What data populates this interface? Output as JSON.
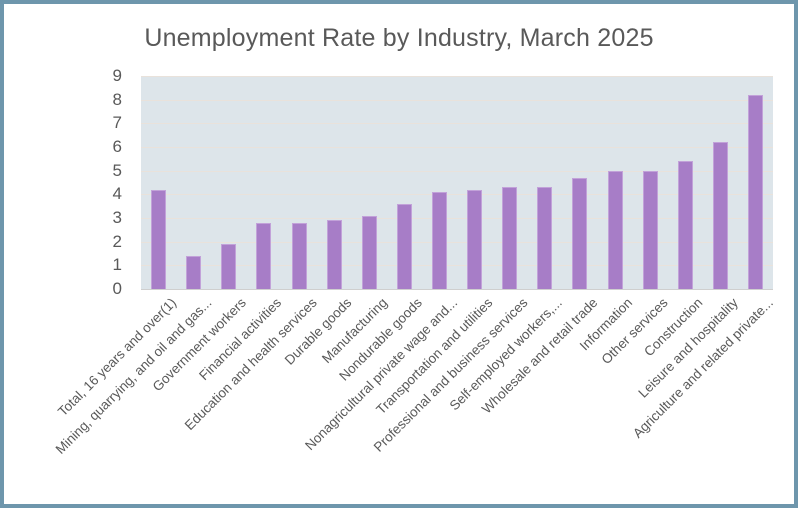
{
  "frame": {
    "border_color": "#6E96AC",
    "background": "#FFFFFF"
  },
  "chart_data": {
    "type": "bar",
    "title": "Unemployment Rate by Industry, March 2025",
    "categories": [
      "Total, 16 years and over(1)",
      "Mining, quarrying, and oil and gas...",
      "Government workers",
      "Financial activities",
      "Education and health services",
      "Durable goods",
      "Manufacturing",
      "Nondurable goods",
      "Nonagricultural private wage and...",
      "Transportation and utilities",
      "Professional and business services",
      "Self-employed workers,...",
      "Wholesale and retail trade",
      "Information",
      "Other services",
      "Construction",
      "Leisure and hospitality",
      "Agriculture and related private..."
    ],
    "values": [
      4.2,
      1.4,
      1.9,
      2.8,
      2.8,
      2.9,
      3.1,
      3.6,
      4.1,
      4.2,
      4.3,
      4.3,
      4.7,
      5.0,
      5.0,
      5.4,
      6.2,
      8.2
    ],
    "xlabel": "",
    "ylabel": "",
    "ylim": [
      0,
      9
    ],
    "ytick_step": 1,
    "grid": true,
    "legend": "none",
    "x_label_rotation_deg": 45,
    "colors": {
      "bar": "#A77DC7",
      "bar_edge": "#C2A2D9",
      "plot_background": "#DDE5EA",
      "gridline": "#E9E2DB",
      "axis_line": "#CFCFCF",
      "text": "#595959",
      "frame_border": "#6E96AC",
      "page_background": "#FFFFFF"
    }
  }
}
